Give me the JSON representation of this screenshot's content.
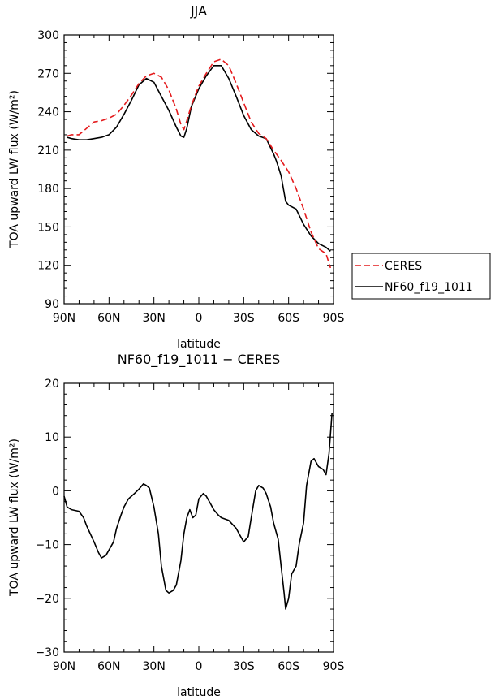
{
  "chart_data": [
    {
      "type": "line",
      "title": "JJA",
      "xlabel": "latitude",
      "ylabel": "TOA upward LW flux (W/m²)",
      "ylim": [
        90,
        300
      ],
      "xlim": [
        90,
        -90
      ],
      "x_tick_values": [
        90,
        60,
        30,
        0,
        -30,
        -60,
        -90
      ],
      "x_ticks": [
        "90N",
        "60N",
        "30N",
        "0",
        "30S",
        "60S",
        "90S"
      ],
      "y_ticks": [
        "90",
        "120",
        "150",
        "180",
        "210",
        "240",
        "270",
        "300"
      ],
      "legend_position": "right-bottom",
      "series": [
        {
          "name": "CERES",
          "color": "#e41a1c",
          "dash": "dashed",
          "x": [
            88,
            85,
            80,
            77,
            70,
            65,
            60,
            55,
            50,
            45,
            40,
            35,
            30,
            25,
            20,
            15,
            12,
            10,
            8,
            5,
            0,
            -5,
            -10,
            -15,
            -20,
            -25,
            -30,
            -35,
            -40,
            -45,
            -50,
            -55,
            -60,
            -65,
            -70,
            -75,
            -80,
            -85,
            -88
          ],
          "y": [
            221,
            222,
            222,
            225,
            232,
            233,
            235,
            238,
            245,
            253,
            262,
            268,
            270,
            267,
            257,
            242,
            230,
            226,
            233,
            245,
            260,
            270,
            279,
            281,
            276,
            262,
            247,
            232,
            223,
            219,
            210,
            202,
            193,
            180,
            164,
            146,
            133,
            129,
            118
          ]
        },
        {
          "name": "NF60_f19_1011",
          "color": "#000000",
          "dash": "solid",
          "x": [
            88,
            85,
            80,
            75,
            70,
            65,
            60,
            55,
            50,
            45,
            40,
            35,
            30,
            25,
            20,
            15,
            12,
            10,
            8,
            5,
            0,
            -5,
            -10,
            -15,
            -20,
            -25,
            -30,
            -35,
            -40,
            -45,
            -50,
            -52,
            -55,
            -58,
            -60,
            -65,
            -70,
            -75,
            -80,
            -85,
            -88
          ],
          "y": [
            220,
            219,
            218,
            218,
            219,
            220,
            222,
            228,
            238,
            249,
            261,
            266,
            263,
            252,
            241,
            228,
            221,
            220,
            227,
            244,
            258,
            268,
            276,
            276,
            266,
            252,
            237,
            226,
            221,
            219,
            207,
            201,
            190,
            170,
            167,
            164,
            152,
            143,
            137,
            134,
            131
          ]
        }
      ]
    },
    {
      "type": "line",
      "title": "NF60_f19_1011 − CERES",
      "xlabel": "latitude",
      "ylabel": "TOA upward LW flux (W/m²)",
      "ylim": [
        -30,
        20
      ],
      "xlim": [
        90,
        -90
      ],
      "x_tick_values": [
        90,
        60,
        30,
        0,
        -30,
        -60,
        -90
      ],
      "x_ticks": [
        "90N",
        "60N",
        "30N",
        "0",
        "30S",
        "60S",
        "90S"
      ],
      "y_ticks": [
        "−30",
        "−20",
        "−10",
        "0",
        "10",
        "20"
      ],
      "series": [
        {
          "color": "#000000",
          "dash": "solid",
          "x": [
            90,
            88,
            85,
            80,
            77,
            75,
            70,
            67,
            65,
            62,
            60,
            57,
            55,
            52,
            50,
            47,
            45,
            43,
            40,
            37,
            35,
            33,
            30,
            27,
            25,
            22,
            20,
            17,
            15,
            12,
            10,
            8,
            6,
            4,
            2,
            0,
            -3,
            -5,
            -8,
            -10,
            -13,
            -15,
            -20,
            -25,
            -28,
            -30,
            -33,
            -35,
            -38,
            -40,
            -43,
            -45,
            -48,
            -50,
            -53,
            -55,
            -57,
            -58,
            -60,
            -62,
            -65,
            -67,
            -70,
            -72,
            -75,
            -77,
            -80,
            -83,
            -85,
            -87,
            -89
          ],
          "y": [
            -1,
            -3,
            -3.5,
            -3.8,
            -5,
            -6.5,
            -9.5,
            -11.5,
            -12.5,
            -12,
            -11,
            -9.5,
            -7,
            -4.5,
            -3,
            -1.5,
            -1,
            -0.5,
            0.3,
            1.3,
            1,
            0.5,
            -3,
            -8,
            -14,
            -18.5,
            -19,
            -18.5,
            -17.5,
            -13,
            -8,
            -5,
            -3.5,
            -5,
            -4.5,
            -1.5,
            -0.5,
            -1,
            -2.5,
            -3.5,
            -4.5,
            -5,
            -5.5,
            -7,
            -8.5,
            -9.5,
            -8.5,
            -5,
            0,
            1,
            0.5,
            -0.5,
            -3,
            -6,
            -9,
            -14,
            -19,
            -22,
            -20,
            -15.5,
            -14,
            -10,
            -6,
            1,
            5.5,
            6,
            4.5,
            4,
            3,
            7,
            14.5
          ]
        }
      ]
    }
  ],
  "legend": {
    "entries": [
      "CERES",
      "NF60_f19_1011"
    ]
  }
}
